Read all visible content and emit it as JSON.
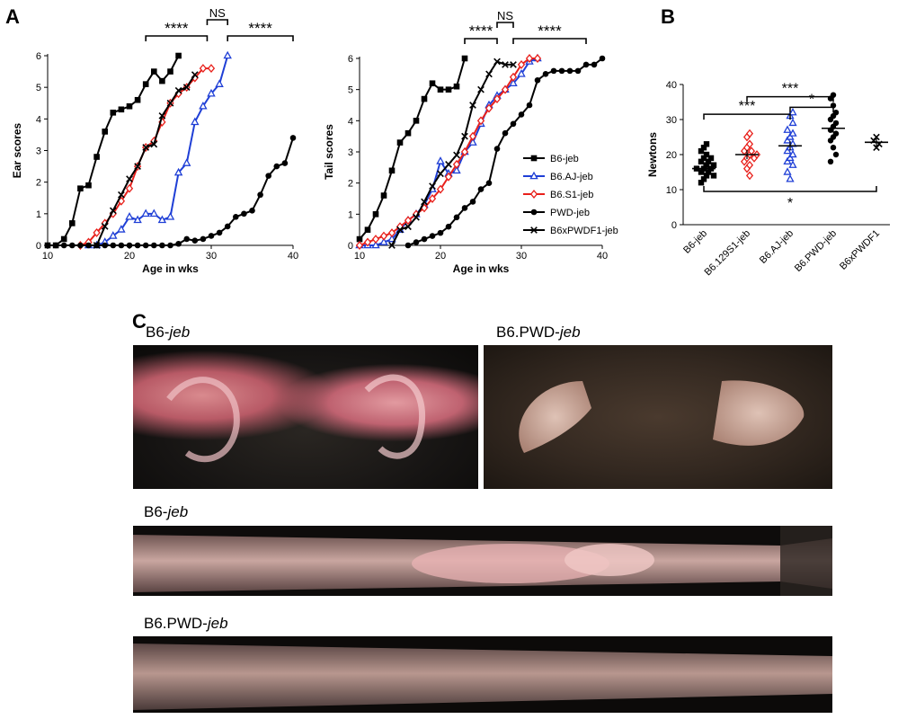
{
  "panels": {
    "A": "A",
    "B": "B",
    "C": "C"
  },
  "chart_data": [
    {
      "type": "line",
      "panel": "A",
      "xlabel": "Age in wks",
      "ylabel": "Ear scores",
      "xlim": [
        10,
        40
      ],
      "ylim": [
        0,
        6
      ],
      "xticks": [
        10,
        20,
        30,
        40
      ],
      "yticks": [
        0,
        1,
        2,
        3,
        4,
        5,
        6
      ],
      "series": [
        {
          "name": "B6-jeb",
          "color": "#000000",
          "marker": "square",
          "x": [
            10,
            11,
            12,
            13,
            14,
            15,
            16,
            17,
            18,
            19,
            20,
            21,
            22,
            23,
            24,
            25,
            26
          ],
          "y": [
            0,
            0,
            0.2,
            0.7,
            1.8,
            1.9,
            2.8,
            3.6,
            4.2,
            4.3,
            4.4,
            4.6,
            5.1,
            5.5,
            5.2,
            5.5,
            6.0
          ]
        },
        {
          "name": "B6.AJ-jeb",
          "color": "#1f3fd6",
          "marker": "triangle",
          "x": [
            15,
            16,
            17,
            18,
            19,
            20,
            21,
            22,
            23,
            24,
            25,
            26,
            27,
            28,
            29,
            30,
            31,
            32
          ],
          "y": [
            0,
            0,
            0.1,
            0.3,
            0.5,
            0.9,
            0.8,
            1.0,
            1.0,
            0.8,
            0.9,
            2.3,
            2.6,
            3.9,
            4.4,
            4.8,
            5.1,
            6.0
          ]
        },
        {
          "name": "B6.S1-jeb",
          "color": "#e8201b",
          "marker": "diamond",
          "x": [
            14,
            15,
            16,
            17,
            18,
            19,
            20,
            21,
            22,
            23,
            24,
            25,
            26,
            27,
            28,
            29,
            30
          ],
          "y": [
            0,
            0.1,
            0.4,
            0.7,
            1.0,
            1.4,
            1.8,
            2.5,
            3.1,
            3.3,
            3.9,
            4.5,
            4.8,
            5.0,
            5.3,
            5.6,
            5.6
          ]
        },
        {
          "name": "PWD-jeb",
          "color": "#000000",
          "marker": "circle",
          "x": [
            10,
            11,
            12,
            13,
            14,
            15,
            16,
            17,
            18,
            19,
            20,
            21,
            22,
            23,
            24,
            25,
            26,
            27,
            28,
            29,
            30,
            31,
            32,
            33,
            34,
            35,
            36,
            37,
            38,
            39,
            40
          ],
          "y": [
            0,
            0,
            0,
            0,
            0,
            0,
            0,
            0,
            0,
            0,
            0,
            0,
            0,
            0,
            0,
            0,
            0.05,
            0.2,
            0.15,
            0.2,
            0.3,
            0.4,
            0.6,
            0.9,
            1.0,
            1.1,
            1.6,
            2.2,
            2.5,
            2.6,
            3.4
          ]
        },
        {
          "name": "B6xPWDF1-jeb",
          "color": "#000000",
          "marker": "x",
          "x": [
            16,
            17,
            18,
            19,
            20,
            21,
            22,
            23,
            24,
            25,
            26,
            27,
            28
          ],
          "y": [
            0,
            0.6,
            1.1,
            1.6,
            2.1,
            2.5,
            3.1,
            3.2,
            4.1,
            4.5,
            4.9,
            5.0,
            5.4
          ]
        }
      ],
      "brackets": [
        {
          "x1": 22,
          "x2": 29.5,
          "label": "****"
        },
        {
          "x1": 29.5,
          "x2": 32,
          "label": "NS",
          "raised": true
        },
        {
          "x1": 32,
          "x2": 40,
          "label": "****"
        }
      ]
    },
    {
      "type": "line",
      "panel": "A",
      "xlabel": "Age in wks",
      "ylabel": "Tail scores",
      "xlim": [
        10,
        40
      ],
      "ylim": [
        0,
        6
      ],
      "xticks": [
        10,
        20,
        30,
        40
      ],
      "yticks": [
        0,
        1,
        2,
        3,
        4,
        5,
        6
      ],
      "legend": "right",
      "series": [
        {
          "name": "B6-jeb",
          "color": "#000000",
          "marker": "square",
          "x": [
            10,
            11,
            12,
            13,
            14,
            15,
            16,
            17,
            18,
            19,
            20,
            21,
            22,
            23
          ],
          "y": [
            0.2,
            0.5,
            1.0,
            1.6,
            2.4,
            3.3,
            3.6,
            4.0,
            4.7,
            5.2,
            5.0,
            5.0,
            5.1,
            6.0
          ]
        },
        {
          "name": "B6.AJ-jeb",
          "color": "#1f3fd6",
          "marker": "triangle",
          "x": [
            10,
            11,
            12,
            13,
            14,
            15,
            16,
            17,
            18,
            19,
            20,
            21,
            22,
            23,
            24,
            25,
            26,
            27,
            28,
            29,
            30,
            31,
            32
          ],
          "y": [
            0,
            0,
            0,
            0.1,
            0.2,
            0.5,
            0.8,
            1.0,
            1.3,
            1.8,
            2.7,
            2.3,
            2.4,
            3.0,
            3.3,
            3.9,
            4.5,
            4.8,
            5.0,
            5.2,
            5.5,
            5.9,
            6.0
          ]
        },
        {
          "name": "B6.S1-jeb",
          "color": "#e8201b",
          "marker": "diamond",
          "x": [
            10,
            11,
            12,
            13,
            14,
            15,
            16,
            17,
            18,
            19,
            20,
            21,
            22,
            23,
            24,
            25,
            26,
            27,
            28,
            29,
            30,
            31,
            32
          ],
          "y": [
            0,
            0.1,
            0.2,
            0.3,
            0.4,
            0.6,
            0.8,
            1.0,
            1.2,
            1.5,
            1.8,
            2.2,
            2.6,
            3.0,
            3.5,
            4.0,
            4.4,
            4.7,
            5.0,
            5.4,
            5.8,
            6.0,
            6.0
          ]
        },
        {
          "name": "PWD-jeb",
          "color": "#000000",
          "marker": "circle",
          "x": [
            16,
            17,
            18,
            19,
            20,
            21,
            22,
            23,
            24,
            25,
            26,
            27,
            28,
            29,
            30,
            31,
            32,
            33,
            34,
            35,
            36,
            37,
            38,
            39,
            40
          ],
          "y": [
            0,
            0.1,
            0.2,
            0.3,
            0.4,
            0.6,
            0.9,
            1.2,
            1.4,
            1.8,
            2.0,
            3.1,
            3.6,
            3.9,
            4.2,
            4.5,
            5.3,
            5.5,
            5.6,
            5.6,
            5.6,
            5.6,
            5.8,
            5.8,
            6.0
          ]
        },
        {
          "name": "B6xPWDF1-jeb",
          "color": "#000000",
          "marker": "x",
          "x": [
            14,
            15,
            16,
            17,
            18,
            19,
            20,
            21,
            22,
            23,
            24,
            25,
            26,
            27,
            28,
            29
          ],
          "y": [
            0,
            0.5,
            0.6,
            0.9,
            1.4,
            1.9,
            2.3,
            2.6,
            2.9,
            3.5,
            4.5,
            5.0,
            5.5,
            5.9,
            5.8,
            5.8
          ]
        }
      ],
      "brackets": [
        {
          "x1": 23,
          "x2": 27,
          "label": "****"
        },
        {
          "x1": 27,
          "x2": 29,
          "label": "NS",
          "raised": true
        },
        {
          "x1": 29,
          "x2": 38,
          "label": "****"
        }
      ]
    },
    {
      "type": "scatter",
      "panel": "B",
      "ylabel": "Newtons",
      "ylim": [
        0,
        40
      ],
      "yticks": [
        0,
        10,
        20,
        30,
        40
      ],
      "categories": [
        "B6-jeb",
        "B6.129S1-jeb",
        "B6.AJ-jeb",
        "B6.PWD-jeb",
        "B6xPWDF1"
      ],
      "series": [
        {
          "name": "B6-jeb",
          "color": "#000000",
          "marker": "square",
          "mean": 16,
          "values": [
            12,
            13,
            14,
            14,
            15,
            15,
            16,
            16,
            16,
            17,
            17,
            18,
            18,
            19,
            19,
            20,
            21,
            22,
            23
          ]
        },
        {
          "name": "B6.129S1-jeb",
          "color": "#e8201b",
          "marker": "diamond",
          "mean": 20,
          "values": [
            14,
            16,
            17,
            18,
            19,
            19,
            20,
            20,
            21,
            21,
            22,
            23,
            25,
            26
          ]
        },
        {
          "name": "B6.AJ-jeb",
          "color": "#1f3fd6",
          "marker": "triangle",
          "mean": 22.5,
          "values": [
            13,
            15,
            17,
            18,
            19,
            20,
            21,
            22,
            23,
            24,
            25,
            26,
            27,
            29,
            31,
            32
          ]
        },
        {
          "name": "B6.PWD-jeb",
          "color": "#000000",
          "marker": "circle",
          "mean": 27.5,
          "values": [
            18,
            20,
            22,
            24,
            25,
            26,
            27,
            28,
            29,
            30,
            31,
            32,
            34,
            36,
            37
          ]
        },
        {
          "name": "B6xPWDF1",
          "color": "#000000",
          "marker": "x",
          "mean": 23.5,
          "values": [
            22,
            23,
            24,
            25
          ]
        }
      ],
      "brackets": [
        {
          "from": 1,
          "to": 3,
          "label": "***",
          "y": 36.5
        },
        {
          "from": 0,
          "to": 2,
          "label": "***",
          "y": 31.5
        },
        {
          "from": 2,
          "to": 3,
          "label": "*",
          "y": 33.5
        },
        {
          "from": 0,
          "to": 4,
          "label": "*",
          "y": 9.5,
          "below": true
        }
      ]
    }
  ],
  "photos": {
    "ear1_caption_base": "B6-",
    "ear1_caption_it": "jeb",
    "ear2_caption_base": "B6.PWD-",
    "ear2_caption_it": "jeb",
    "tail1_caption_base": "B6-",
    "tail1_caption_it": "jeb",
    "tail2_caption_base": "B6.PWD-",
    "tail2_caption_it": "jeb"
  }
}
